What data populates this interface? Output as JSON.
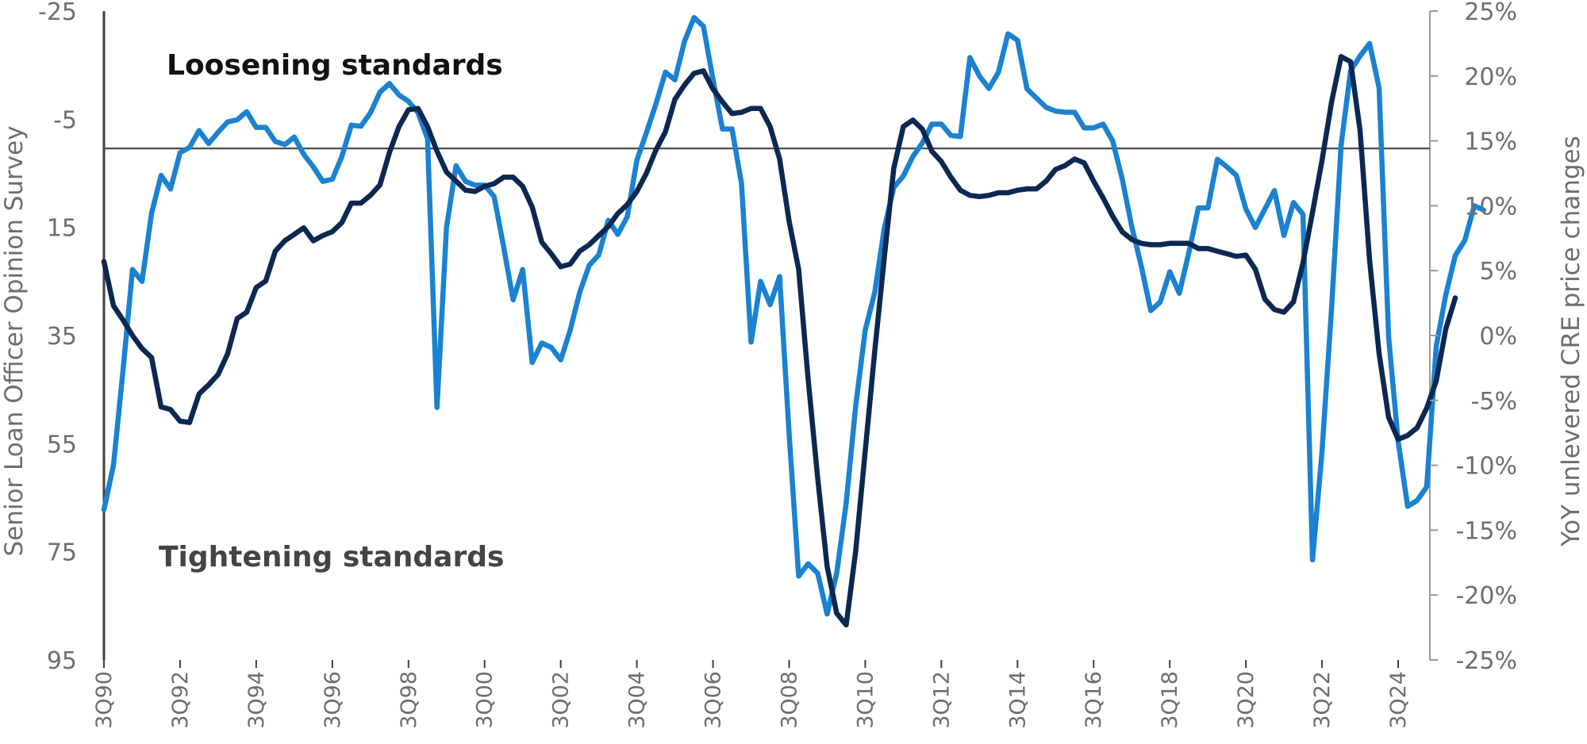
{
  "chart_data": {
    "type": "line",
    "x_start": "3Q90",
    "x_end": "1Q25",
    "x_ticks": [
      "3Q90",
      "3Q92",
      "3Q94",
      "3Q96",
      "3Q98",
      "3Q00",
      "3Q02",
      "3Q04",
      "3Q06",
      "3Q08",
      "3Q10",
      "3Q12",
      "3Q14",
      "3Q16",
      "3Q18",
      "3Q20",
      "3Q22",
      "3Q24"
    ],
    "y_left": {
      "label": "Senior Loan Officer Opinion Survey",
      "range": [
        -25,
        95
      ],
      "inverted": true,
      "ticks": [
        "-25",
        "-5",
        "15",
        "35",
        "55",
        "75",
        "95"
      ]
    },
    "y_right": {
      "label": "YoY unlevered CRE price changes",
      "range": [
        -25,
        25
      ],
      "ticks": [
        "25%",
        "20%",
        "15%",
        "10%",
        "5%",
        "0%",
        "-5%",
        "-10%",
        "-15%",
        "-20%",
        "-25%"
      ]
    },
    "reference_line": {
      "axis": "left",
      "value": 0.4
    },
    "annotations": {
      "top": "Loosening standards",
      "bottom": "Tightening standards"
    },
    "colors": {
      "series_left": "#1a82d1",
      "series_right": "#0b2852",
      "reference_line": "#4d4d4f",
      "axis": "#6d6e71"
    },
    "series": [
      {
        "axis": "left",
        "start": "3Q90",
        "values": [
          67.2,
          59.0,
          41.5,
          22.8,
          25.0,
          12.4,
          5.4,
          7.9,
          1.2,
          0.2,
          -2.9,
          -0.5,
          -2.6,
          -4.5,
          -4.9,
          -6.4,
          -3.5,
          -3.5,
          -0.9,
          -0.3,
          -1.7,
          1.5,
          3.8,
          6.5,
          6.1,
          1.9,
          -3.9,
          -3.7,
          -6.2,
          -10.0,
          -11.6,
          -9.5,
          -8.3,
          -6.2,
          -1.4,
          48.3,
          15.0,
          3.6,
          6.5,
          7.2,
          7.2,
          9.3,
          18.6,
          28.4,
          22.8,
          40.0,
          36.4,
          37.2,
          39.5,
          34.0,
          27.0,
          22.0,
          20.1,
          13.7,
          16.3,
          13.0,
          2.6,
          -2.5,
          -7.8,
          -13.7,
          -12.3,
          -19.4,
          -23.8,
          -22.2,
          -12.4,
          -3.2,
          -3.2,
          6.9,
          36.2,
          25.0,
          29.3,
          24.1,
          53.2,
          79.5,
          77.2,
          79.0,
          86.5,
          79.0,
          66.0,
          48.0,
          34.0,
          27.0,
          15.2,
          7.6,
          5.5,
          1.9,
          -0.6,
          -4.1,
          -4.1,
          -2.0,
          -1.8,
          -16.4,
          -13.0,
          -10.7,
          -13.7,
          -20.8,
          -19.6,
          -10.6,
          -8.9,
          -7.2,
          -6.5,
          -6.3,
          -6.3,
          -3.4,
          -3.4,
          -4.1,
          -1.0,
          6.0,
          14.8,
          22.1,
          30.4,
          28.8,
          23.2,
          27.2,
          19.7,
          11.4,
          11.4,
          2.4,
          3.8,
          5.4,
          11.6,
          15.0,
          11.6,
          8.2,
          16.5,
          10.4,
          12.6,
          76.5,
          56.4,
          30.0,
          -0.2,
          -14.0,
          -16.7,
          -19.0,
          -10.8,
          35.3,
          54.6,
          66.6,
          65.5,
          63.0,
          37.0,
          27.5,
          20.2,
          17.4,
          11.0,
          11.8
        ],
        "marker_note": "quarterly values, one point per quarter"
      },
      {
        "axis": "right",
        "start": "3Q90",
        "values": [
          5.7,
          2.3,
          1.2,
          0.0,
          -1.0,
          -1.7,
          -5.5,
          -5.7,
          -6.6,
          -6.7,
          -4.5,
          -3.8,
          -3.0,
          -1.4,
          1.3,
          1.8,
          3.7,
          4.2,
          6.5,
          7.3,
          7.8,
          8.3,
          7.3,
          7.7,
          8.0,
          8.7,
          10.2,
          10.2,
          10.8,
          11.6,
          14.1,
          16.1,
          17.4,
          17.5,
          16.1,
          14.2,
          12.6,
          11.9,
          11.2,
          11.1,
          11.5,
          11.7,
          12.2,
          12.2,
          11.5,
          9.9,
          7.2,
          6.3,
          5.3,
          5.5,
          6.5,
          7.0,
          7.7,
          8.4,
          9.4,
          10.1,
          11.1,
          12.5,
          14.3,
          15.7,
          18.2,
          19.3,
          20.2,
          20.4,
          19.0,
          18.0,
          17.1,
          17.2,
          17.5,
          17.5,
          16.1,
          13.6,
          8.8,
          5.1,
          -3.4,
          -11.0,
          -17.8,
          -21.4,
          -22.3,
          -16.6,
          -8.9,
          -1.2,
          6.0,
          12.9,
          16.1,
          16.6,
          15.9,
          14.2,
          13.4,
          12.2,
          11.2,
          10.8,
          10.7,
          10.8,
          11.0,
          11.0,
          11.2,
          11.3,
          11.3,
          11.9,
          12.8,
          13.1,
          13.6,
          13.3,
          11.9,
          10.6,
          9.2,
          8.0,
          7.4,
          7.1,
          7.0,
          7.0,
          7.1,
          7.1,
          7.1,
          6.7,
          6.7,
          6.5,
          6.3,
          6.1,
          6.2,
          5.1,
          2.8,
          2.0,
          1.8,
          2.6,
          5.6,
          9.5,
          13.5,
          18.0,
          21.5,
          21.1,
          15.8,
          5.8,
          -1.4,
          -6.3,
          -8.0,
          -7.7,
          -7.1,
          -5.6,
          -3.5,
          0.5,
          2.9
        ]
      }
    ]
  }
}
